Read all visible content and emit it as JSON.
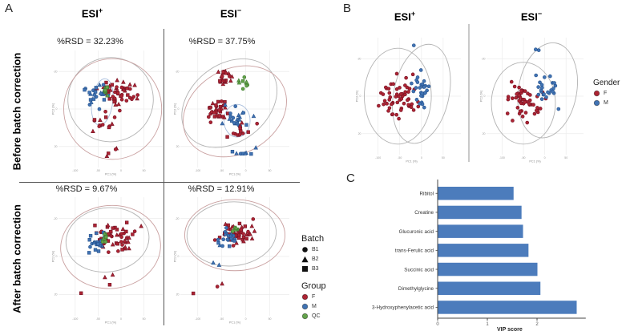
{
  "panels": {
    "a": {
      "label": "A",
      "cols": [
        {
          "base": "ESI",
          "sup": "+"
        },
        {
          "base": "ESI",
          "sup": "−"
        }
      ],
      "row_labels": [
        "Before batch correction",
        "After batch correction"
      ],
      "rsd": [
        "%RSD = 32.23%",
        "%RSD = 37.75%",
        "%RSD = 9.67%",
        "%RSD = 12.91%"
      ]
    },
    "b": {
      "label": "B",
      "cols": [
        {
          "base": "ESI",
          "sup": "+"
        },
        {
          "base": "ESI",
          "sup": "−"
        }
      ]
    },
    "c": {
      "label": "C"
    }
  },
  "legends": {
    "batch": {
      "title": "Batch",
      "items": [
        {
          "shape": "circle",
          "color": "#111111",
          "label": "B1"
        },
        {
          "shape": "triangle",
          "color": "#111111",
          "label": "B2"
        },
        {
          "shape": "square",
          "color": "#111111",
          "label": "B3"
        }
      ]
    },
    "group": {
      "title": "Group",
      "items": [
        {
          "shape": "circle",
          "color": "#AC2433",
          "label": "F"
        },
        {
          "shape": "circle",
          "color": "#4173B3",
          "label": "M"
        },
        {
          "shape": "circle",
          "color": "#63A24B",
          "label": "QC"
        }
      ]
    },
    "gender": {
      "title": "Gender",
      "items": [
        {
          "shape": "circle",
          "color": "#AC2433",
          "label": "F"
        },
        {
          "shape": "circle",
          "color": "#4173B3",
          "label": "M"
        }
      ]
    }
  },
  "colors": {
    "F": "#AC2433",
    "F_stroke": "#731022",
    "M": "#4173B3",
    "M_stroke": "#24518C",
    "QC": "#63A24B",
    "QC_stroke": "#3E7A2E",
    "bar": "#4C7CBC",
    "ellipse_gray": "#b3b3b3",
    "ellipse_red": "#c9a0a0",
    "ellipse_blue": "#a9bedd"
  },
  "chart_data": [
    {
      "id": "a1",
      "type": "scatter",
      "title": "ESI+",
      "subtitle": "%RSD = 32.23%",
      "xlabel": "PC1 (%)",
      "ylabel": "PC2 (%)",
      "xticks": [
        "-100",
        "-50",
        "0",
        "50"
      ],
      "yticks": [
        "-20",
        "0",
        "20"
      ],
      "seed": 11,
      "marker_shapes": [
        "circle",
        "triangle",
        "square"
      ],
      "ellipses": [
        {
          "cx": 0.5,
          "cy": 0.42,
          "rx": 0.41,
          "ry": 0.36,
          "rot": -10,
          "color": "gray"
        },
        {
          "cx": 0.52,
          "cy": 0.5,
          "rx": 0.47,
          "ry": 0.43,
          "rot": 0,
          "color": "red"
        },
        {
          "cx": 0.42,
          "cy": 0.44,
          "rx": 0.1,
          "ry": 0.2,
          "rot": 8,
          "color": "blue"
        }
      ],
      "clusters": [
        {
          "group": "F",
          "n": 48,
          "cx": 0.58,
          "cy": 0.36,
          "sx": 0.2,
          "sy": 0.13
        },
        {
          "group": "F",
          "n": 14,
          "cx": 0.48,
          "cy": 0.62,
          "sx": 0.16,
          "sy": 0.1
        },
        {
          "group": "M",
          "n": 24,
          "cx": 0.38,
          "cy": 0.4,
          "sx": 0.11,
          "sy": 0.13
        },
        {
          "group": "F",
          "n": 4,
          "cx": 0.45,
          "cy": 0.88,
          "sx": 0.25,
          "sy": 0.06
        },
        {
          "group": "QC",
          "n": 9,
          "cx": 0.46,
          "cy": 0.34,
          "sx": 0.035,
          "sy": 0.06
        }
      ]
    },
    {
      "id": "a2",
      "type": "scatter",
      "title": "ESI−",
      "subtitle": "%RSD = 37.75%",
      "xlabel": "PC1 (%)",
      "ylabel": "PC2 (%)",
      "xticks": [
        "-100",
        "-50",
        "0",
        "50"
      ],
      "yticks": [
        "-20",
        "0",
        "20"
      ],
      "seed": 22,
      "marker_shapes": [
        "circle",
        "triangle",
        "square"
      ],
      "ellipses": [
        {
          "cx": 0.45,
          "cy": 0.45,
          "rx": 0.48,
          "ry": 0.33,
          "rot": -38,
          "color": "gray"
        },
        {
          "cx": 0.5,
          "cy": 0.52,
          "rx": 0.5,
          "ry": 0.36,
          "rot": -30,
          "color": "red"
        },
        {
          "cx": 0.52,
          "cy": 0.6,
          "rx": 0.12,
          "ry": 0.14,
          "rot": 0,
          "color": "blue"
        }
      ],
      "clusters": [
        {
          "group": "F",
          "n": 20,
          "cx": 0.42,
          "cy": 0.24,
          "sx": 0.1,
          "sy": 0.06
        },
        {
          "group": "F",
          "n": 30,
          "cx": 0.33,
          "cy": 0.52,
          "sx": 0.12,
          "sy": 0.09
        },
        {
          "group": "M",
          "n": 22,
          "cx": 0.52,
          "cy": 0.58,
          "sx": 0.13,
          "sy": 0.1
        },
        {
          "group": "F",
          "n": 12,
          "cx": 0.55,
          "cy": 0.68,
          "sx": 0.15,
          "sy": 0.07
        },
        {
          "group": "M",
          "n": 8,
          "cx": 0.58,
          "cy": 0.87,
          "sx": 0.18,
          "sy": 0.04
        },
        {
          "group": "QC",
          "n": 9,
          "cx": 0.58,
          "cy": 0.27,
          "sx": 0.05,
          "sy": 0.05
        }
      ]
    },
    {
      "id": "a3",
      "type": "scatter",
      "title": "ESI+",
      "subtitle": "%RSD = 9.67%",
      "xlabel": "PC1 (%)",
      "ylabel": "PC2 (%)",
      "xticks": [
        "-100",
        "-50",
        "0",
        "50"
      ],
      "yticks": [
        "-20",
        "0",
        "20"
      ],
      "seed": 33,
      "marker_shapes": [
        "circle",
        "triangle",
        "square"
      ],
      "ellipses": [
        {
          "cx": 0.47,
          "cy": 0.36,
          "rx": 0.4,
          "ry": 0.27,
          "rot": -8,
          "color": "gray"
        },
        {
          "cx": 0.5,
          "cy": 0.42,
          "rx": 0.48,
          "ry": 0.35,
          "rot": -5,
          "color": "red"
        }
      ],
      "clusters": [
        {
          "group": "F",
          "n": 52,
          "cx": 0.55,
          "cy": 0.33,
          "sx": 0.2,
          "sy": 0.12
        },
        {
          "group": "M",
          "n": 22,
          "cx": 0.36,
          "cy": 0.37,
          "sx": 0.1,
          "sy": 0.09
        },
        {
          "group": "F",
          "n": 4,
          "cx": 0.4,
          "cy": 0.72,
          "sx": 0.22,
          "sy": 0.12
        },
        {
          "group": "QC",
          "n": 7,
          "cx": 0.45,
          "cy": 0.35,
          "sx": 0.03,
          "sy": 0.04
        }
      ]
    },
    {
      "id": "a4",
      "type": "scatter",
      "title": "ESI−",
      "subtitle": "%RSD = 12.91%",
      "xlabel": "PC1 (%)",
      "ylabel": "PC2 (%)",
      "xticks": [
        "-100",
        "-50",
        "0",
        "50"
      ],
      "yticks": [
        "-20",
        "0",
        "20"
      ],
      "seed": 44,
      "marker_shapes": [
        "circle",
        "triangle",
        "square"
      ],
      "ellipses": [
        {
          "cx": 0.47,
          "cy": 0.31,
          "rx": 0.41,
          "ry": 0.27,
          "rot": -5,
          "color": "gray"
        },
        {
          "cx": 0.5,
          "cy": 0.32,
          "rx": 0.46,
          "ry": 0.3,
          "rot": 0,
          "color": "red"
        }
      ],
      "clusters": [
        {
          "group": "F",
          "n": 50,
          "cx": 0.52,
          "cy": 0.3,
          "sx": 0.17,
          "sy": 0.1
        },
        {
          "group": "M",
          "n": 20,
          "cx": 0.44,
          "cy": 0.34,
          "sx": 0.14,
          "sy": 0.09
        },
        {
          "group": "F",
          "n": 3,
          "cx": 0.42,
          "cy": 0.74,
          "sx": 0.25,
          "sy": 0.1
        },
        {
          "group": "M",
          "n": 2,
          "cx": 0.3,
          "cy": 0.58,
          "sx": 0.14,
          "sy": 0.05
        },
        {
          "group": "QC",
          "n": 6,
          "cx": 0.5,
          "cy": 0.28,
          "sx": 0.03,
          "sy": 0.04
        }
      ]
    },
    {
      "id": "b1",
      "type": "scatter",
      "title": "ESI+",
      "subtitle": "",
      "xlabel": "PC1 (%)",
      "ylabel": "PC2 (%)",
      "xticks": [
        "-100",
        "-50",
        "0",
        "50"
      ],
      "yticks": [
        "-20",
        "0",
        "20"
      ],
      "seed": 55,
      "marker_shapes": [
        "circle"
      ],
      "ellipses": [
        {
          "cx": 0.36,
          "cy": 0.5,
          "rx": 0.34,
          "ry": 0.41,
          "rot": 0,
          "color": "gray"
        },
        {
          "cx": 0.6,
          "cy": 0.48,
          "rx": 0.28,
          "ry": 0.43,
          "rot": 12,
          "color": "gray"
        }
      ],
      "clusters": [
        {
          "group": "F",
          "n": 58,
          "cx": 0.38,
          "cy": 0.52,
          "sx": 0.2,
          "sy": 0.19
        },
        {
          "group": "M",
          "n": 27,
          "cx": 0.6,
          "cy": 0.46,
          "sx": 0.11,
          "sy": 0.15
        },
        {
          "group": "M",
          "n": 1,
          "cx": 0.52,
          "cy": 0.07,
          "sx": 0.01,
          "sy": 0.01
        }
      ]
    },
    {
      "id": "b2",
      "type": "scatter",
      "title": "ESI−",
      "subtitle": "",
      "xlabel": "PC1 (%)",
      "ylabel": "PC2 (%)",
      "xticks": [
        "-100",
        "-50",
        "0",
        "50"
      ],
      "yticks": [
        "-20",
        "0",
        "20"
      ],
      "seed": 66,
      "marker_shapes": [
        "circle"
      ],
      "ellipses": [
        {
          "cx": 0.38,
          "cy": 0.56,
          "rx": 0.33,
          "ry": 0.35,
          "rot": 0,
          "color": "gray"
        },
        {
          "cx": 0.63,
          "cy": 0.45,
          "rx": 0.3,
          "ry": 0.41,
          "rot": 10,
          "color": "gray"
        }
      ],
      "clusters": [
        {
          "group": "F",
          "n": 52,
          "cx": 0.42,
          "cy": 0.55,
          "sx": 0.19,
          "sy": 0.15
        },
        {
          "group": "M",
          "n": 24,
          "cx": 0.63,
          "cy": 0.45,
          "sx": 0.12,
          "sy": 0.13
        },
        {
          "group": "M",
          "n": 2,
          "cx": 0.55,
          "cy": 0.1,
          "sx": 0.08,
          "sy": 0.03
        }
      ]
    },
    {
      "id": "c",
      "type": "bar",
      "categories": [
        "Ribitol",
        "Creatine",
        "Glucuronic acid",
        "trans-Ferulic acid",
        "Succinic acid",
        "Dimethylglycine",
        "3-Hydroxyphenylacetic acid"
      ],
      "values": [
        1.52,
        1.68,
        1.71,
        1.82,
        2.0,
        2.06,
        2.79
      ],
      "xlabel": "VIP score",
      "xticks": [
        "0",
        "1",
        "2"
      ],
      "xlim": [
        0,
        2.9
      ]
    }
  ]
}
